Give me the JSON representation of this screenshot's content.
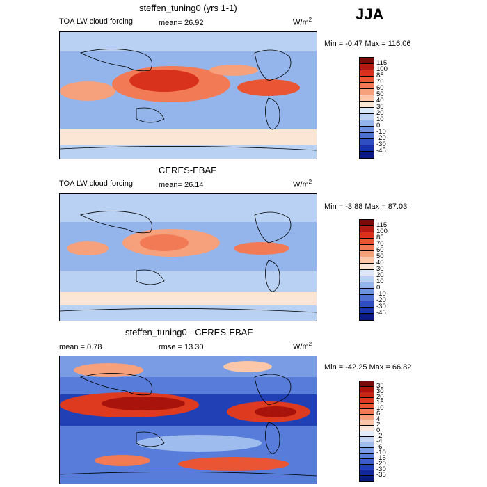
{
  "season": "JJA",
  "panels": [
    {
      "title": "steffen_tuning0 (yrs 1-1)",
      "left_label": "TOA LW cloud forcing",
      "mean_text": "mean=  26.92",
      "units_base": "W/m",
      "units_exp": "2",
      "minmax": "Min =  -0.47 Max = 116.06",
      "levels": [
        "115",
        "100",
        "85",
        "70",
        "60",
        "50",
        "40",
        "30",
        "20",
        "10",
        "0",
        "-10",
        "-20",
        "-30",
        "-45"
      ],
      "colors": [
        "#7a0a0a",
        "#b31a0f",
        "#d8321c",
        "#ea5533",
        "#f27a55",
        "#f7a17c",
        "#fbc7a8",
        "#fbe6d6",
        "#dce8f8",
        "#b9d2f3",
        "#93b5ec",
        "#6f93e0",
        "#4e70d2",
        "#2e4ec1",
        "#1732a8",
        "#0a1a82"
      ]
    },
    {
      "title": "CERES-EBAF",
      "left_label": "TOA LW cloud forcing",
      "mean_text": "mean=  26.14",
      "units_base": "W/m",
      "units_exp": "2",
      "minmax": "Min =  -3.88 Max =  87.03",
      "levels": [
        "115",
        "100",
        "85",
        "70",
        "60",
        "50",
        "40",
        "30",
        "20",
        "10",
        "0",
        "-10",
        "-20",
        "-30",
        "-45"
      ],
      "colors": [
        "#7a0a0a",
        "#b31a0f",
        "#d8321c",
        "#ea5533",
        "#f27a55",
        "#f7a17c",
        "#fbc7a8",
        "#fbe6d6",
        "#dce8f8",
        "#b9d2f3",
        "#93b5ec",
        "#6f93e0",
        "#4e70d2",
        "#2e4ec1",
        "#1732a8",
        "#0a1a82"
      ]
    },
    {
      "title": "steffen_tuning0 - CERES-EBAF",
      "left_label": "mean =   0.78",
      "mean_text": "rmse =  13.30",
      "units_base": "W/m",
      "units_exp": "2",
      "minmax": "Min = -42.25 Max =  66.82",
      "levels": [
        "35",
        "30",
        "20",
        "15",
        "10",
        "6",
        "4",
        "2",
        "0",
        "-2",
        "-4",
        "-6",
        "-10",
        "-15",
        "-20",
        "-30",
        "-35"
      ],
      "colors": [
        "#7a0a0a",
        "#a8140c",
        "#c82414",
        "#dd3a20",
        "#ea5533",
        "#f27a55",
        "#f7a17c",
        "#fbc7a8",
        "#fde7dc",
        "#e2ecfa",
        "#c3d7f5",
        "#9ebcee",
        "#7a9ce5",
        "#587cd9",
        "#3a5dca",
        "#2240b5",
        "#12289a",
        "#0a1a7a"
      ]
    }
  ]
}
